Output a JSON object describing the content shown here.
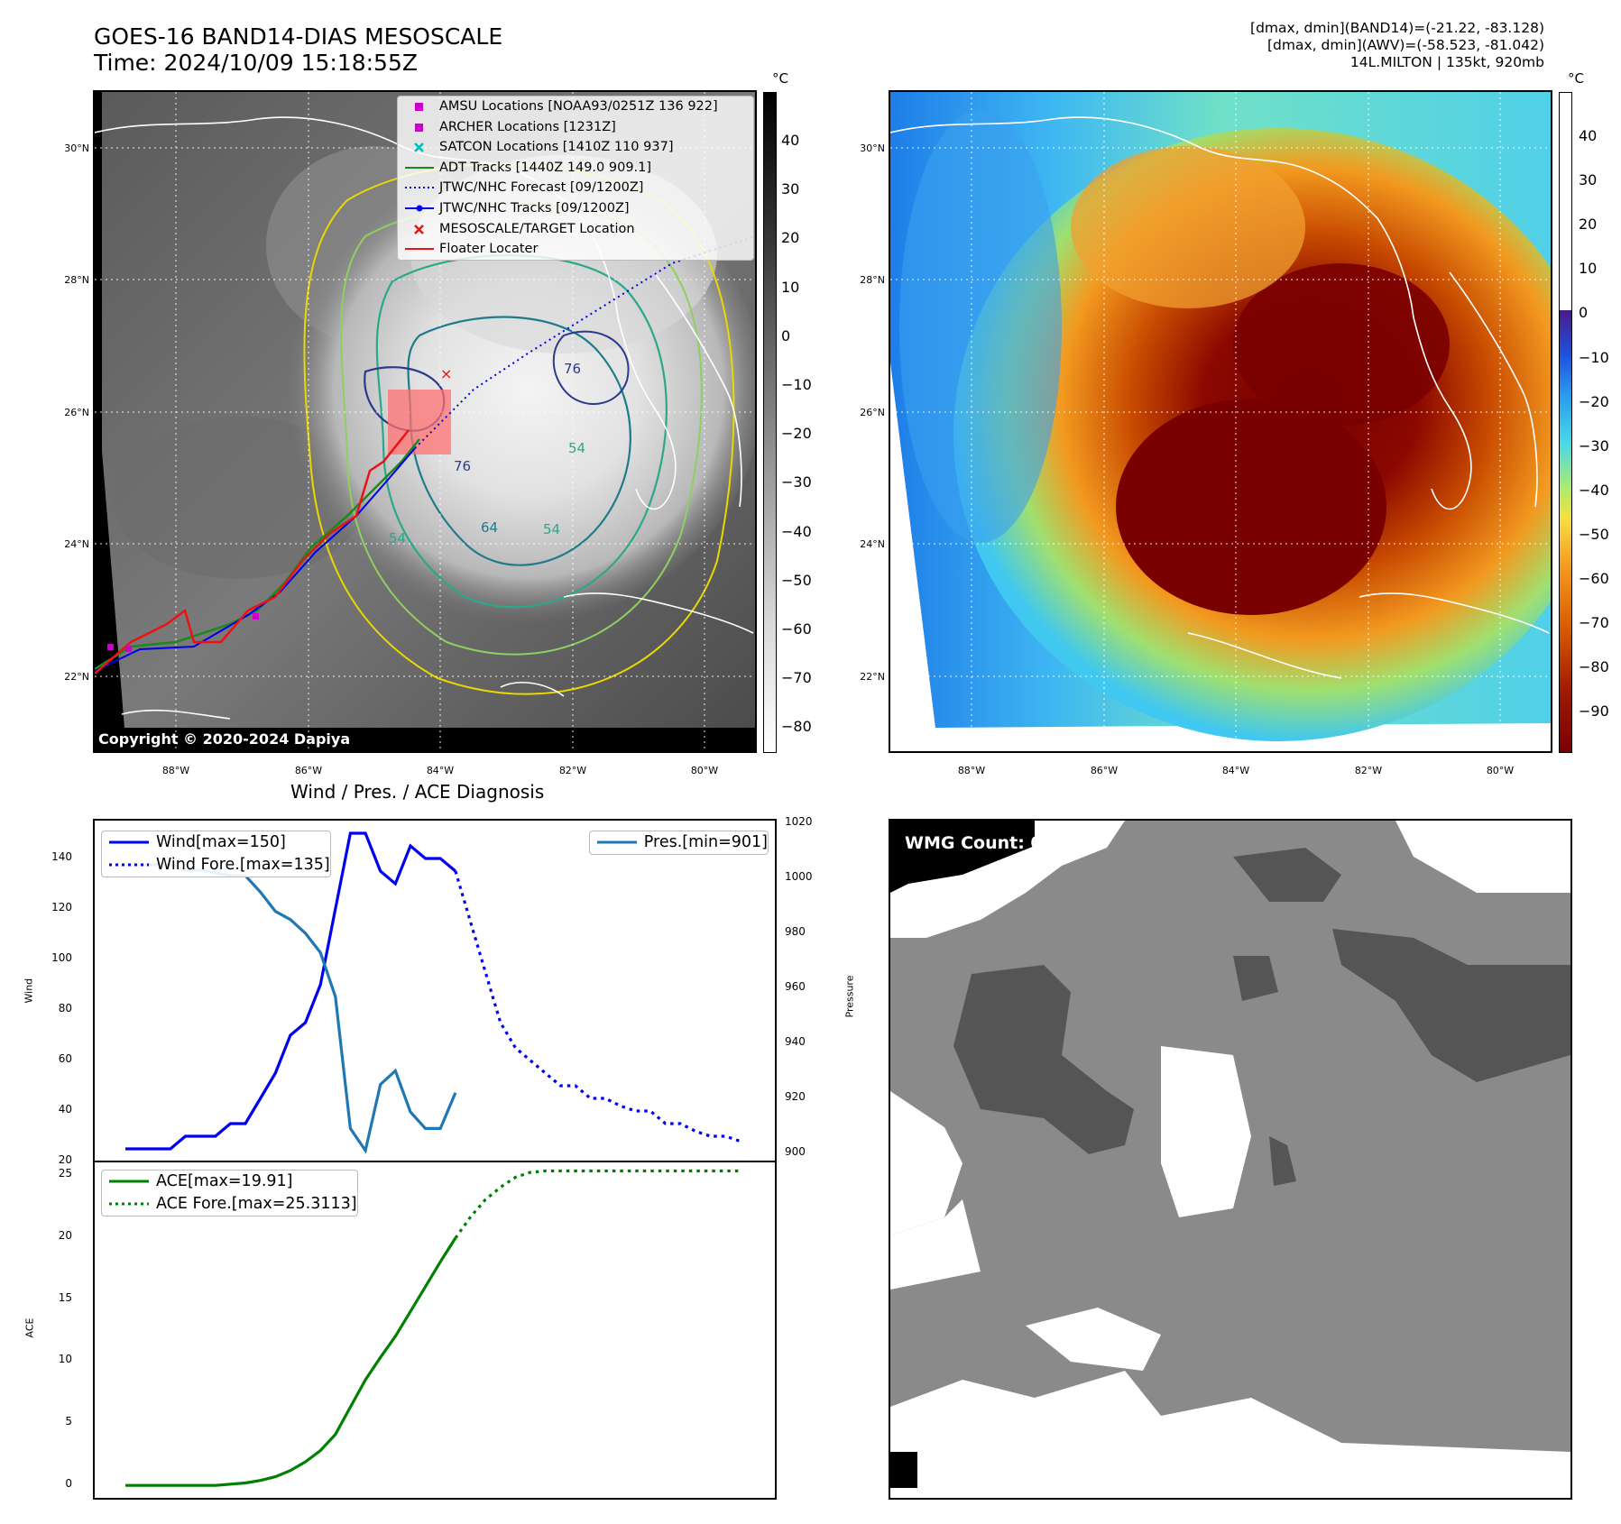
{
  "header": {
    "title_line1": "GOES-16 BAND14-DIAS MESOSCALE",
    "title_line2": "Time: 2024/10/09 15:18:55Z",
    "stats_line1": "[dmax, dmin](BAND14)=(-21.22, -83.128)",
    "stats_line2": "[dmax, dmin](AWV)=(-58.523, -81.042)",
    "stats_line3": "14L.MILTON | 135kt, 920mb"
  },
  "colors": {
    "track_adt": "#1a8a1a",
    "track_jtwc": "#0000ee",
    "floater": "#ee1111",
    "amsu": "#cc00cc",
    "satcon": "#00bbbb",
    "wind": "#0000ee",
    "pressure": "#1f77b4",
    "ace": "#008000"
  },
  "map_panel": {
    "copyright": "Copyright © 2020-2024 Dapiya",
    "lat_labels": [
      "30°N",
      "28°N",
      "26°N",
      "24°N",
      "22°N"
    ],
    "lon_labels": [
      "88°W",
      "86°W",
      "84°W",
      "82°W",
      "80°W"
    ],
    "colorbar_unit": "°C",
    "colorbar_ticks": [
      "40",
      "30",
      "20",
      "10",
      "0",
      "−10",
      "−20",
      "−30",
      "−40",
      "−50",
      "−60",
      "−70",
      "−80"
    ],
    "contour_labels": [
      "76",
      "76",
      "64",
      "54",
      "54",
      "54"
    ],
    "legend": [
      {
        "label": "AMSU Locations [NOAA93/0251Z 136 922]",
        "icon": "square-marker"
      },
      {
        "label": "ARCHER Locations [1231Z]",
        "icon": "square-marker"
      },
      {
        "label": "SATCON Locations [1410Z 110 937]",
        "icon": "x-marker"
      },
      {
        "label": "ADT Tracks [1440Z 149.0 909.1]",
        "icon": "solid-line"
      },
      {
        "label": "JTWC/NHC Forecast [09/1200Z]",
        "icon": "dotted-line"
      },
      {
        "label": "JTWC/NHC Tracks [09/1200Z]",
        "icon": "line-dot"
      },
      {
        "label": "MESOSCALE/TARGET Location",
        "icon": "x-marker"
      },
      {
        "label": "Floater Locater",
        "icon": "solid-line"
      }
    ]
  },
  "awv_panel": {
    "lat_labels": [
      "30°N",
      "28°N",
      "26°N",
      "24°N",
      "22°N"
    ],
    "lon_labels": [
      "88°W",
      "86°W",
      "84°W",
      "82°W",
      "80°W"
    ],
    "colorbar_unit": "°C",
    "colorbar_ticks": [
      "40",
      "30",
      "20",
      "10",
      "0",
      "−10",
      "−20",
      "−30",
      "−40",
      "−50",
      "−60",
      "−70",
      "−80",
      "−90"
    ]
  },
  "wmg_panel": {
    "count_label": "WMG Count: 0"
  },
  "chart_data": [
    {
      "type": "line",
      "title": "Wind / Pres. / ACE Diagnosis",
      "ylabel": "Wind",
      "ylabel2": "Pressure",
      "ylim": [
        20,
        155
      ],
      "ylim2": [
        897,
        1021
      ],
      "y_ticks": [
        20,
        40,
        60,
        80,
        100,
        120,
        140
      ],
      "y2_ticks": [
        900,
        920,
        940,
        960,
        980,
        1000,
        1020
      ],
      "series": [
        {
          "name": "Wind[max=150]",
          "axis": "left",
          "style": "solid",
          "values": [
            25,
            25,
            25,
            25,
            30,
            30,
            30,
            35,
            35,
            45,
            55,
            70,
            75,
            90,
            120,
            150,
            150,
            135,
            130,
            145,
            140,
            140,
            135
          ]
        },
        {
          "name": "Wind Fore.[max=135]",
          "axis": "left",
          "style": "dotted",
          "start_index": 22,
          "values": [
            135,
            115,
            95,
            75,
            65,
            60,
            55,
            50,
            50,
            45,
            45,
            42,
            40,
            40,
            35,
            35,
            32,
            30,
            30,
            28
          ]
        },
        {
          "name": "Pres.[min=901]",
          "axis": "right",
          "style": "solid",
          "values": [
            1005,
            1005,
            1005,
            1005,
            1003,
            1003,
            1002,
            1001,
            1001,
            995,
            988,
            985,
            980,
            973,
            957,
            909,
            901,
            925,
            930,
            915,
            909,
            909,
            922
          ]
        }
      ],
      "legend_left": [
        "Wind[max=150]",
        "Wind Fore.[max=135]"
      ],
      "legend_right": [
        "Pres.[min=901]"
      ]
    },
    {
      "type": "line",
      "ylabel": "ACE",
      "ylim": [
        -1,
        26
      ],
      "y_ticks": [
        0,
        5,
        10,
        15,
        20,
        25
      ],
      "series": [
        {
          "name": "ACE[max=19.91]",
          "style": "solid",
          "values": [
            0,
            0,
            0,
            0,
            0,
            0,
            0,
            0.1,
            0.2,
            0.4,
            0.7,
            1.2,
            1.9,
            2.8,
            4.1,
            6.3,
            8.5,
            10.3,
            12.0,
            14.0,
            16.0,
            18.0,
            19.91
          ]
        },
        {
          "name": "ACE Fore.[max=25.3113]",
          "style": "dotted",
          "start_index": 22,
          "values": [
            19.91,
            21.6,
            23.0,
            24.0,
            24.8,
            25.2,
            25.3113,
            25.3113,
            25.3113,
            25.3113,
            25.3113,
            25.3113,
            25.3113,
            25.3113,
            25.3113,
            25.3113,
            25.3113,
            25.3113,
            25.3113,
            25.3113
          ]
        }
      ]
    }
  ]
}
